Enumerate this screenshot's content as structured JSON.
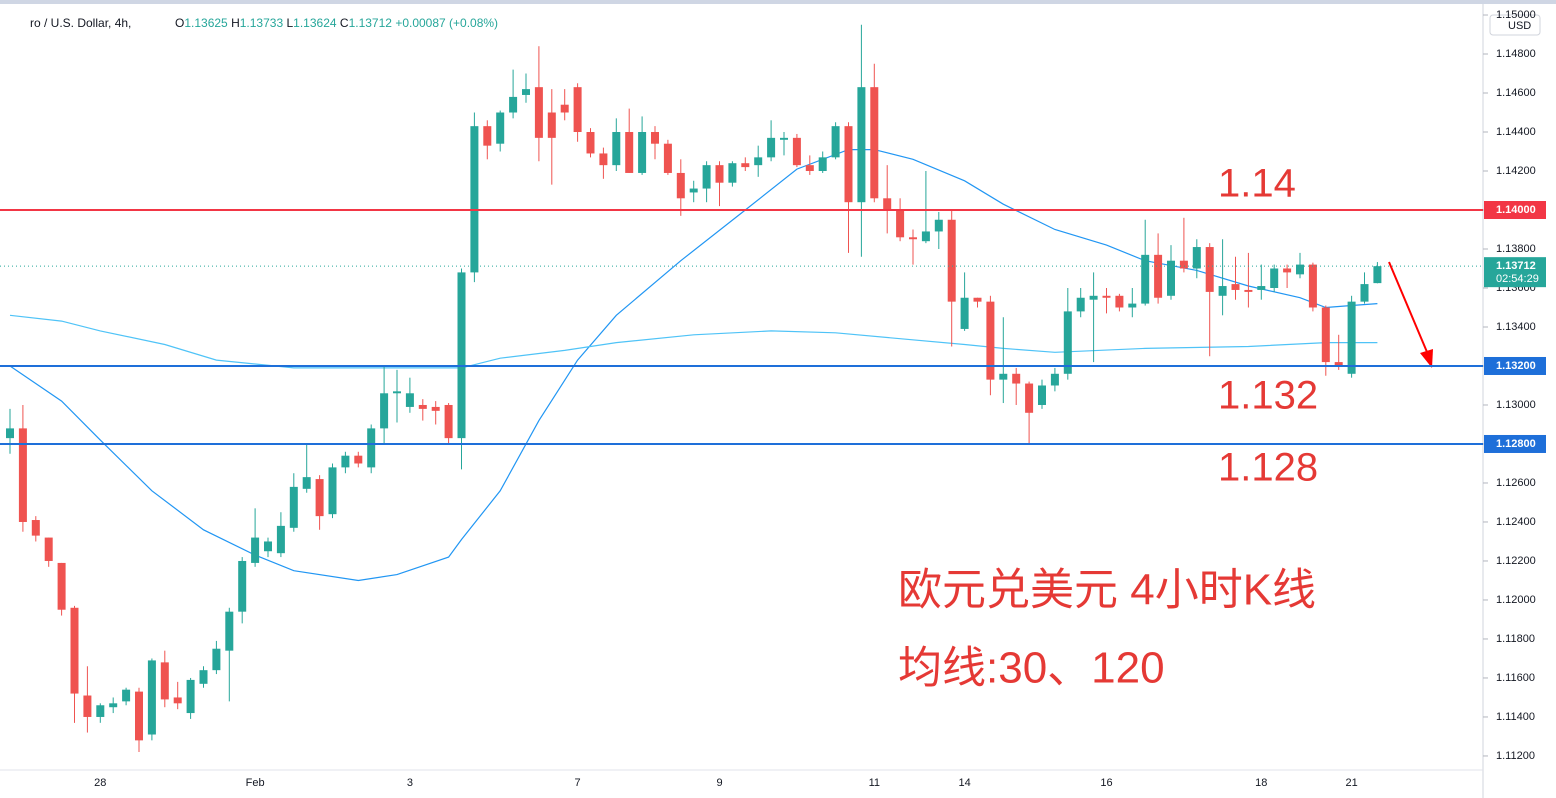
{
  "chart_data": {
    "type": "candlestick",
    "header": {
      "symbol": "ro / U.S. Dollar, 4h,",
      "ohlc": [
        [
          "O",
          "1.13625"
        ],
        [
          "H",
          "1.13733"
        ],
        [
          "L",
          "1.13624"
        ],
        [
          "C",
          "1.13712"
        ]
      ],
      "change": "+0.00087 (+0.08%)"
    },
    "currency": "USD",
    "categories": [
      null,
      null,
      null,
      null,
      null,
      null,
      null,
      "28",
      null,
      null,
      null,
      null,
      null,
      null,
      null,
      null,
      null,
      null,
      null,
      "Feb",
      null,
      null,
      null,
      null,
      null,
      null,
      null,
      null,
      null,
      null,
      null,
      "3",
      null,
      null,
      null,
      null,
      null,
      null,
      null,
      null,
      null,
      null,
      null,
      null,
      "7",
      null,
      null,
      null,
      null,
      null,
      null,
      null,
      null,
      null,
      null,
      "9",
      null,
      null,
      null,
      null,
      null,
      null,
      null,
      null,
      null,
      null,
      null,
      "11",
      null,
      null,
      null,
      null,
      null,
      null,
      "14",
      null,
      null,
      null,
      null,
      null,
      null,
      null,
      null,
      null,
      null,
      "16",
      null,
      null,
      null,
      null,
      null,
      null,
      null,
      null,
      null,
      null,
      null,
      "18",
      null,
      null,
      null,
      null,
      null,
      null,
      "21",
      null,
      null
    ],
    "open": [
      1.1283,
      1.1288,
      1.1241,
      1.1232,
      1.1219,
      1.1196,
      1.1151,
      1.114,
      1.1145,
      1.1148,
      1.1153,
      1.1131,
      1.1168,
      1.115,
      1.1142,
      1.1157,
      1.1164,
      1.1174,
      1.1194,
      1.1219,
      1.1225,
      1.1224,
      1.1237,
      1.1257,
      1.1262,
      1.1244,
      1.1268,
      1.1274,
      1.1268,
      1.1288,
      1.1306,
      1.1299,
      1.13,
      1.1299,
      1.13,
      1.1283,
      1.1368,
      1.1443,
      1.1434,
      1.145,
      1.1459,
      1.1463,
      1.145,
      1.1454,
      1.1463,
      1.144,
      1.1429,
      1.1423,
      1.144,
      1.1419,
      1.144,
      1.1434,
      1.1419,
      1.1409,
      1.1411,
      1.1423,
      1.1414,
      1.1424,
      1.1423,
      1.1427,
      1.1436,
      1.1437,
      1.1423,
      1.142,
      1.1427,
      1.1443,
      1.1404,
      1.1463,
      1.1406,
      1.14,
      1.1386,
      1.1384,
      1.1389,
      1.1395,
      1.1339,
      1.1355,
      1.1353,
      1.1313,
      1.1316,
      1.1311,
      1.13,
      1.131,
      1.1316,
      1.1348,
      1.1354,
      1.1356,
      1.1356,
      1.135,
      1.1352,
      1.1377,
      1.1356,
      1.1374,
      1.137,
      1.1381,
      1.1356,
      1.1362,
      1.1359,
      1.1359,
      1.136,
      1.137,
      1.1367,
      1.1372,
      1.135,
      1.1322,
      1.1316,
      1.1353,
      1.13625
    ],
    "high": [
      1.1298,
      1.13,
      1.1243,
      1.1232,
      1.1219,
      1.1197,
      1.1166,
      1.1147,
      1.115,
      1.1155,
      1.1155,
      1.117,
      1.1174,
      1.1158,
      1.116,
      1.1166,
      1.1179,
      1.1196,
      1.1222,
      1.1247,
      1.1232,
      1.1245,
      1.1265,
      1.128,
      1.1264,
      1.127,
      1.1276,
      1.1276,
      1.129,
      1.132,
      1.1318,
      1.1314,
      1.1303,
      1.1302,
      1.1301,
      1.137,
      1.145,
      1.1446,
      1.1451,
      1.1472,
      1.147,
      1.1484,
      1.1462,
      1.1462,
      1.1465,
      1.1442,
      1.1432,
      1.1447,
      1.1452,
      1.1448,
      1.1443,
      1.1436,
      1.1426,
      1.1415,
      1.1425,
      1.1425,
      1.1425,
      1.1427,
      1.1433,
      1.1446,
      1.144,
      1.1439,
      1.1428,
      1.143,
      1.1445,
      1.1445,
      1.1495,
      1.1475,
      1.1423,
      1.1406,
      1.139,
      1.142,
      1.1399,
      1.14,
      1.1368,
      1.1355,
      1.1356,
      1.1345,
      1.1319,
      1.1312,
      1.1313,
      1.1319,
      1.136,
      1.136,
      1.1368,
      1.136,
      1.1357,
      1.136,
      1.1395,
      1.1388,
      1.1382,
      1.1396,
      1.1385,
      1.1383,
      1.1385,
      1.1376,
      1.1378,
      1.1372,
      1.1372,
      1.1372,
      1.1378,
      1.1373,
      1.1351,
      1.1336,
      1.1356,
      1.1368,
      1.13733
    ],
    "low": [
      1.1275,
      1.1235,
      1.123,
      1.1217,
      1.1192,
      1.1137,
      1.1132,
      1.1137,
      1.1142,
      1.1146,
      1.1122,
      1.1128,
      1.1145,
      1.1144,
      1.1139,
      1.1155,
      1.1162,
      1.1148,
      1.1188,
      1.1217,
      1.1222,
      1.1222,
      1.1235,
      1.1255,
      1.1236,
      1.1242,
      1.1265,
      1.1268,
      1.1265,
      1.128,
      1.1291,
      1.1296,
      1.1292,
      1.129,
      1.128,
      1.1267,
      1.1363,
      1.1426,
      1.143,
      1.1447,
      1.1455,
      1.1425,
      1.1413,
      1.1446,
      1.1435,
      1.1427,
      1.1416,
      1.142,
      1.1419,
      1.1418,
      1.1426,
      1.1418,
      1.1397,
      1.1404,
      1.1404,
      1.1402,
      1.1412,
      1.142,
      1.1417,
      1.1425,
      1.1428,
      1.1422,
      1.1418,
      1.1419,
      1.1426,
      1.1378,
      1.1376,
      1.1404,
      1.1388,
      1.1384,
      1.1372,
      1.1383,
      1.138,
      1.133,
      1.1338,
      1.135,
      1.1305,
      1.1301,
      1.13,
      1.128,
      1.1298,
      1.1307,
      1.1313,
      1.1345,
      1.1322,
      1.1347,
      1.1348,
      1.1345,
      1.1351,
      1.1352,
      1.1354,
      1.1368,
      1.1365,
      1.1325,
      1.1346,
      1.1354,
      1.135,
      1.1354,
      1.1358,
      1.136,
      1.1365,
      1.1348,
      1.1315,
      1.1318,
      1.1314,
      1.1352,
      1.13624
    ],
    "close": [
      1.1288,
      1.124,
      1.1233,
      1.122,
      1.1195,
      1.1152,
      1.114,
      1.1146,
      1.1147,
      1.1154,
      1.1128,
      1.1169,
      1.1149,
      1.1147,
      1.1159,
      1.1164,
      1.1175,
      1.1194,
      1.122,
      1.1232,
      1.123,
      1.1238,
      1.1258,
      1.1263,
      1.1243,
      1.1268,
      1.1274,
      1.127,
      1.1288,
      1.1306,
      1.1307,
      1.1306,
      1.1298,
      1.1297,
      1.1283,
      1.1368,
      1.1443,
      1.1433,
      1.145,
      1.1458,
      1.1462,
      1.1437,
      1.1437,
      1.145,
      1.144,
      1.1429,
      1.1423,
      1.144,
      1.1419,
      1.144,
      1.1434,
      1.1419,
      1.1406,
      1.1411,
      1.1423,
      1.1414,
      1.1424,
      1.1422,
      1.1427,
      1.1437,
      1.1437,
      1.1423,
      1.142,
      1.1427,
      1.1443,
      1.1404,
      1.1463,
      1.1406,
      1.14,
      1.1386,
      1.1385,
      1.1389,
      1.1395,
      1.1353,
      1.1355,
      1.1353,
      1.1313,
      1.1316,
      1.1311,
      1.1296,
      1.131,
      1.1316,
      1.1348,
      1.1355,
      1.1356,
      1.1355,
      1.135,
      1.1352,
      1.1377,
      1.1355,
      1.1374,
      1.137,
      1.1381,
      1.1358,
      1.1361,
      1.1359,
      1.1358,
      1.1361,
      1.137,
      1.1368,
      1.1372,
      1.135,
      1.1322,
      1.132,
      1.1353,
      1.1362,
      1.13712
    ],
    "up_color": "#26a69a",
    "down_color": "#ef5350",
    "lines": [
      {
        "color": "#2196f3",
        "x": [
          0,
          4,
          7,
          11,
          15,
          19,
          22,
          27,
          30,
          34,
          35,
          38,
          41,
          44,
          47,
          52,
          57,
          61,
          65,
          67,
          70,
          74,
          77,
          81,
          85,
          88,
          92,
          96,
          100,
          102,
          104,
          106
        ],
        "values": [
          1.132,
          1.1302,
          1.1282,
          1.1256,
          1.1236,
          1.1223,
          1.1215,
          1.121,
          1.1213,
          1.1222,
          1.1231,
          1.1256,
          1.1292,
          1.1323,
          1.1346,
          1.1374,
          1.14,
          1.1421,
          1.1431,
          1.1431,
          1.1426,
          1.1415,
          1.1403,
          1.139,
          1.1382,
          1.1374,
          1.1369,
          1.1361,
          1.1355,
          1.135,
          1.1351,
          1.1352
        ]
      },
      {
        "color": "#4fc3f7",
        "x": [
          0,
          4,
          7,
          12,
          16,
          22,
          30,
          35,
          38,
          43,
          47,
          53,
          59,
          64,
          69,
          74,
          77,
          81,
          88,
          96,
          102,
          106
        ],
        "values": [
          1.1346,
          1.1343,
          1.1338,
          1.1331,
          1.1323,
          1.1319,
          1.1319,
          1.1319,
          1.1324,
          1.1328,
          1.1332,
          1.1336,
          1.1338,
          1.1337,
          1.1334,
          1.1331,
          1.1329,
          1.1327,
          1.1329,
          1.133,
          1.1332,
          1.1332
        ]
      }
    ],
    "hlines": [
      {
        "value": 1.14,
        "label": "1.14000",
        "color": "#f23645"
      },
      {
        "value": 1.132,
        "label": "1.13200",
        "color": "#1e6fd9"
      },
      {
        "value": 1.128,
        "label": "1.12800",
        "color": "#1e6fd9"
      }
    ],
    "last_price": {
      "value": 1.13712,
      "label": "1.13712",
      "countdown": "02:54:29",
      "color": "#26a69a"
    },
    "ylim": [
      1.11128,
      1.15077
    ],
    "yticks": [
      {
        "value": 1.112,
        "label": "1.11200"
      },
      {
        "value": 1.114,
        "label": "1.11400"
      },
      {
        "value": 1.116,
        "label": "1.11600"
      },
      {
        "value": 1.118,
        "label": "1.11800"
      },
      {
        "value": 1.12,
        "label": "1.12000"
      },
      {
        "value": 1.122,
        "label": "1.12200"
      },
      {
        "value": 1.124,
        "label": "1.12400"
      },
      {
        "value": 1.126,
        "label": "1.12600"
      },
      {
        "value": 1.128,
        "label": "1.12800"
      },
      {
        "value": 1.13,
        "label": "1.13000"
      },
      {
        "value": 1.132,
        "label": "1.13200"
      },
      {
        "value": 1.134,
        "label": "1.13400"
      },
      {
        "value": 1.136,
        "label": "1.13600"
      },
      {
        "value": 1.138,
        "label": "1.13800"
      },
      {
        "value": 1.14,
        "label": "1.14000"
      },
      {
        "value": 1.142,
        "label": "1.14200"
      },
      {
        "value": 1.144,
        "label": "1.14400"
      },
      {
        "value": 1.146,
        "label": "1.14600"
      },
      {
        "value": 1.148,
        "label": "1.14800"
      },
      {
        "value": 1.15,
        "label": "1.15000"
      }
    ],
    "grid": false,
    "annotations": [
      "1.14",
      "1.132",
      "1.128",
      "欧元兑美元 4小时K线",
      "均线:30、120"
    ],
    "annotation_color": "#e53935"
  }
}
